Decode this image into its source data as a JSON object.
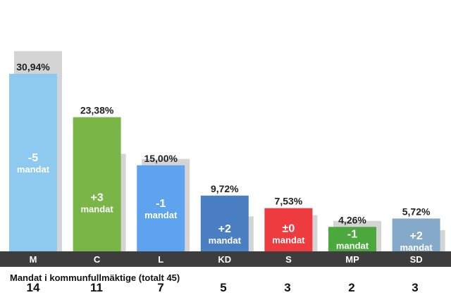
{
  "chart_data": {
    "type": "bar",
    "categories": [
      "M",
      "C",
      "L",
      "KD",
      "S",
      "MP",
      "SD"
    ],
    "values": [
      30.94,
      23.38,
      15.0,
      9.72,
      7.53,
      4.26,
      5.72
    ],
    "previous_values": [
      34.9,
      17.0,
      16.1,
      6.1,
      6.3,
      5.3,
      3.7
    ],
    "value_labels": [
      "30,94%",
      "23,38%",
      "15,00%",
      "9,72%",
      "7,53%",
      "4,26%",
      "5,72%"
    ],
    "change_labels": [
      "-5",
      "+3",
      "-1",
      "+2",
      "±0",
      "-1",
      "+2"
    ],
    "change_unit": "mandat",
    "colors": [
      "#8ec9ef",
      "#7ab548",
      "#5ea3ee",
      "#4a7fc4",
      "#ee3b3f",
      "#4aa83d",
      "#84a9c9"
    ],
    "grid": false,
    "ylim": [
      0,
      35
    ]
  },
  "seats": {
    "title": "Mandat i kommunfullmäktige (totalt 45)",
    "values": [
      "14",
      "11",
      "7",
      "5",
      "3",
      "2",
      "3"
    ]
  }
}
